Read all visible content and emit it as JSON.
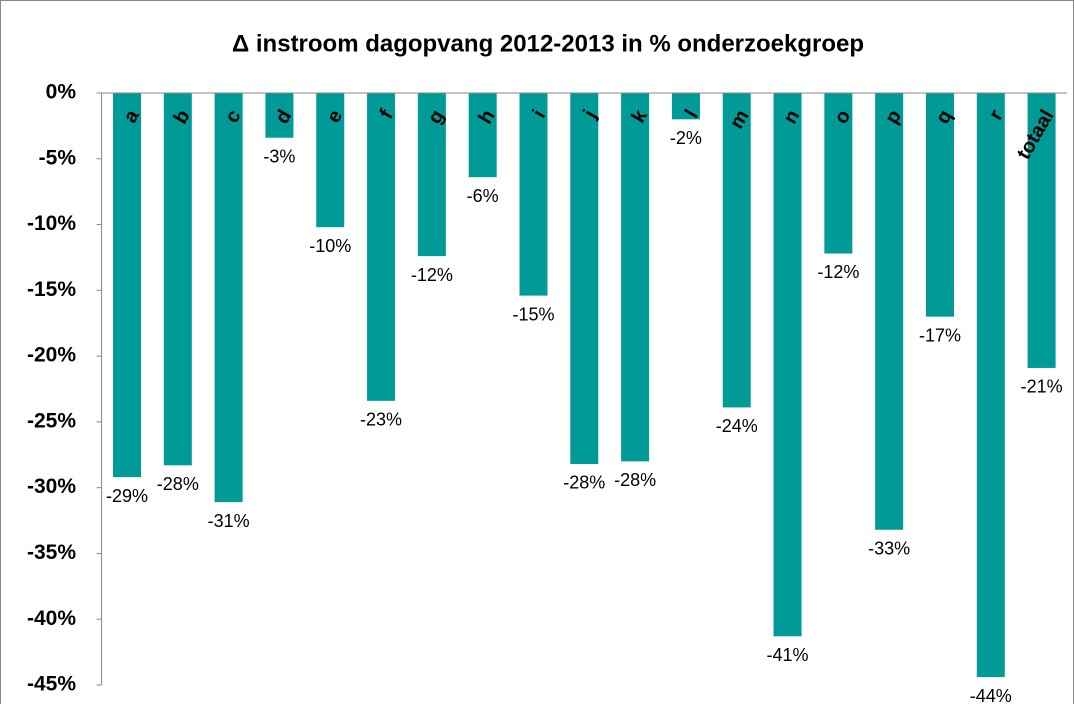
{
  "chart_data": {
    "type": "bar",
    "title": "Δ instroom dagopvang 2012-2013 in % onderzoekgroep",
    "categories": [
      "a",
      "b",
      "c",
      "d",
      "e",
      "f",
      "g",
      "h",
      "i",
      "j",
      "k",
      "l",
      "m",
      "n",
      "o",
      "p",
      "q",
      "r",
      "totaal"
    ],
    "values": [
      -29.2,
      -28.3,
      -31.1,
      -3.4,
      -10.2,
      -23.4,
      -12.4,
      -6.4,
      -15.4,
      -28.2,
      -28.0,
      -2.0,
      -23.9,
      -41.3,
      -12.2,
      -33.2,
      -17.0,
      -44.4,
      -20.9
    ],
    "value_labels": [
      "-29%",
      "-28%",
      "-31%",
      "-3%",
      "-10%",
      "-23%",
      "-12%",
      "-6%",
      "-15%",
      "-28%",
      "-28%",
      "-2%",
      "-24%",
      "-41%",
      "-12%",
      "-33%",
      "-17%",
      "-44%",
      "-21%"
    ],
    "color": "#009b96",
    "ylim": [
      -45,
      0
    ],
    "yticks": [
      {
        "value": 0,
        "label": "0%"
      },
      {
        "value": -5,
        "label": "-5%"
      },
      {
        "value": -10,
        "label": "-10%"
      },
      {
        "value": -15,
        "label": "-15%"
      },
      {
        "value": -20,
        "label": "-20%"
      },
      {
        "value": -25,
        "label": "-25%"
      },
      {
        "value": -30,
        "label": "-30%"
      },
      {
        "value": -35,
        "label": "-35%"
      },
      {
        "value": -40,
        "label": "-40%"
      },
      {
        "value": -45,
        "label": "-45%"
      }
    ],
    "grid": false
  }
}
